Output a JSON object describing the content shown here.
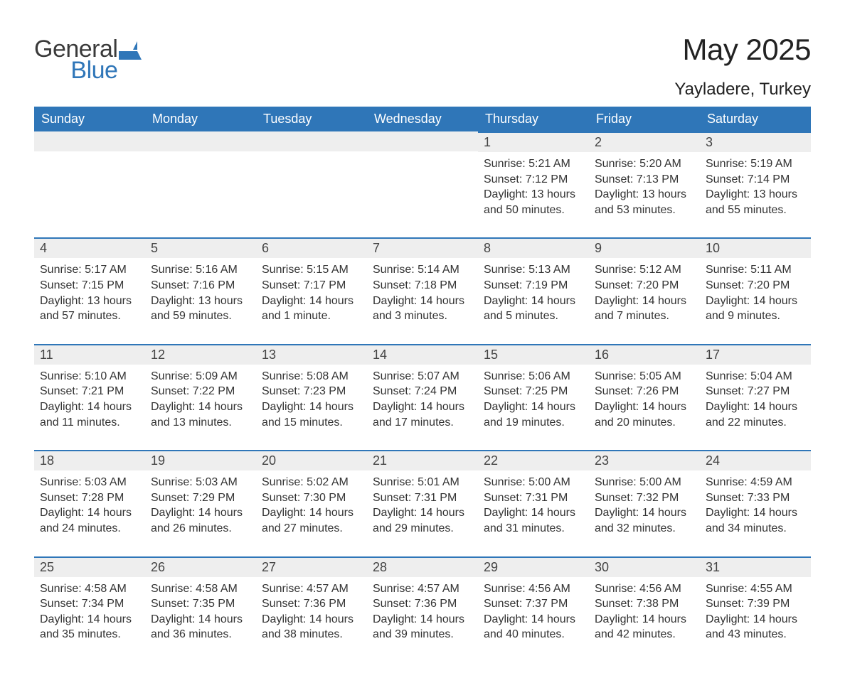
{
  "logo": {
    "word1": "General",
    "word2": "Blue"
  },
  "title": "May 2025",
  "subtitle": "Yayladere, Turkey",
  "colors": {
    "brand_blue": "#2f76b8",
    "header_text": "#ffffff",
    "daynum_bg": "#eeeeee",
    "body_text": "#333333",
    "page_bg": "#ffffff"
  },
  "columns": [
    "Sunday",
    "Monday",
    "Tuesday",
    "Wednesday",
    "Thursday",
    "Friday",
    "Saturday"
  ],
  "weeks": [
    [
      {
        "day": "",
        "sunrise": "",
        "sunset": "",
        "daylight": ""
      },
      {
        "day": "",
        "sunrise": "",
        "sunset": "",
        "daylight": ""
      },
      {
        "day": "",
        "sunrise": "",
        "sunset": "",
        "daylight": ""
      },
      {
        "day": "",
        "sunrise": "",
        "sunset": "",
        "daylight": ""
      },
      {
        "day": "1",
        "sunrise": "Sunrise: 5:21 AM",
        "sunset": "Sunset: 7:12 PM",
        "daylight": "Daylight: 13 hours and 50 minutes."
      },
      {
        "day": "2",
        "sunrise": "Sunrise: 5:20 AM",
        "sunset": "Sunset: 7:13 PM",
        "daylight": "Daylight: 13 hours and 53 minutes."
      },
      {
        "day": "3",
        "sunrise": "Sunrise: 5:19 AM",
        "sunset": "Sunset: 7:14 PM",
        "daylight": "Daylight: 13 hours and 55 minutes."
      }
    ],
    [
      {
        "day": "4",
        "sunrise": "Sunrise: 5:17 AM",
        "sunset": "Sunset: 7:15 PM",
        "daylight": "Daylight: 13 hours and 57 minutes."
      },
      {
        "day": "5",
        "sunrise": "Sunrise: 5:16 AM",
        "sunset": "Sunset: 7:16 PM",
        "daylight": "Daylight: 13 hours and 59 minutes."
      },
      {
        "day": "6",
        "sunrise": "Sunrise: 5:15 AM",
        "sunset": "Sunset: 7:17 PM",
        "daylight": "Daylight: 14 hours and 1 minute."
      },
      {
        "day": "7",
        "sunrise": "Sunrise: 5:14 AM",
        "sunset": "Sunset: 7:18 PM",
        "daylight": "Daylight: 14 hours and 3 minutes."
      },
      {
        "day": "8",
        "sunrise": "Sunrise: 5:13 AM",
        "sunset": "Sunset: 7:19 PM",
        "daylight": "Daylight: 14 hours and 5 minutes."
      },
      {
        "day": "9",
        "sunrise": "Sunrise: 5:12 AM",
        "sunset": "Sunset: 7:20 PM",
        "daylight": "Daylight: 14 hours and 7 minutes."
      },
      {
        "day": "10",
        "sunrise": "Sunrise: 5:11 AM",
        "sunset": "Sunset: 7:20 PM",
        "daylight": "Daylight: 14 hours and 9 minutes."
      }
    ],
    [
      {
        "day": "11",
        "sunrise": "Sunrise: 5:10 AM",
        "sunset": "Sunset: 7:21 PM",
        "daylight": "Daylight: 14 hours and 11 minutes."
      },
      {
        "day": "12",
        "sunrise": "Sunrise: 5:09 AM",
        "sunset": "Sunset: 7:22 PM",
        "daylight": "Daylight: 14 hours and 13 minutes."
      },
      {
        "day": "13",
        "sunrise": "Sunrise: 5:08 AM",
        "sunset": "Sunset: 7:23 PM",
        "daylight": "Daylight: 14 hours and 15 minutes."
      },
      {
        "day": "14",
        "sunrise": "Sunrise: 5:07 AM",
        "sunset": "Sunset: 7:24 PM",
        "daylight": "Daylight: 14 hours and 17 minutes."
      },
      {
        "day": "15",
        "sunrise": "Sunrise: 5:06 AM",
        "sunset": "Sunset: 7:25 PM",
        "daylight": "Daylight: 14 hours and 19 minutes."
      },
      {
        "day": "16",
        "sunrise": "Sunrise: 5:05 AM",
        "sunset": "Sunset: 7:26 PM",
        "daylight": "Daylight: 14 hours and 20 minutes."
      },
      {
        "day": "17",
        "sunrise": "Sunrise: 5:04 AM",
        "sunset": "Sunset: 7:27 PM",
        "daylight": "Daylight: 14 hours and 22 minutes."
      }
    ],
    [
      {
        "day": "18",
        "sunrise": "Sunrise: 5:03 AM",
        "sunset": "Sunset: 7:28 PM",
        "daylight": "Daylight: 14 hours and 24 minutes."
      },
      {
        "day": "19",
        "sunrise": "Sunrise: 5:03 AM",
        "sunset": "Sunset: 7:29 PM",
        "daylight": "Daylight: 14 hours and 26 minutes."
      },
      {
        "day": "20",
        "sunrise": "Sunrise: 5:02 AM",
        "sunset": "Sunset: 7:30 PM",
        "daylight": "Daylight: 14 hours and 27 minutes."
      },
      {
        "day": "21",
        "sunrise": "Sunrise: 5:01 AM",
        "sunset": "Sunset: 7:31 PM",
        "daylight": "Daylight: 14 hours and 29 minutes."
      },
      {
        "day": "22",
        "sunrise": "Sunrise: 5:00 AM",
        "sunset": "Sunset: 7:31 PM",
        "daylight": "Daylight: 14 hours and 31 minutes."
      },
      {
        "day": "23",
        "sunrise": "Sunrise: 5:00 AM",
        "sunset": "Sunset: 7:32 PM",
        "daylight": "Daylight: 14 hours and 32 minutes."
      },
      {
        "day": "24",
        "sunrise": "Sunrise: 4:59 AM",
        "sunset": "Sunset: 7:33 PM",
        "daylight": "Daylight: 14 hours and 34 minutes."
      }
    ],
    [
      {
        "day": "25",
        "sunrise": "Sunrise: 4:58 AM",
        "sunset": "Sunset: 7:34 PM",
        "daylight": "Daylight: 14 hours and 35 minutes."
      },
      {
        "day": "26",
        "sunrise": "Sunrise: 4:58 AM",
        "sunset": "Sunset: 7:35 PM",
        "daylight": "Daylight: 14 hours and 36 minutes."
      },
      {
        "day": "27",
        "sunrise": "Sunrise: 4:57 AM",
        "sunset": "Sunset: 7:36 PM",
        "daylight": "Daylight: 14 hours and 38 minutes."
      },
      {
        "day": "28",
        "sunrise": "Sunrise: 4:57 AM",
        "sunset": "Sunset: 7:36 PM",
        "daylight": "Daylight: 14 hours and 39 minutes."
      },
      {
        "day": "29",
        "sunrise": "Sunrise: 4:56 AM",
        "sunset": "Sunset: 7:37 PM",
        "daylight": "Daylight: 14 hours and 40 minutes."
      },
      {
        "day": "30",
        "sunrise": "Sunrise: 4:56 AM",
        "sunset": "Sunset: 7:38 PM",
        "daylight": "Daylight: 14 hours and 42 minutes."
      },
      {
        "day": "31",
        "sunrise": "Sunrise: 4:55 AM",
        "sunset": "Sunset: 7:39 PM",
        "daylight": "Daylight: 14 hours and 43 minutes."
      }
    ]
  ]
}
